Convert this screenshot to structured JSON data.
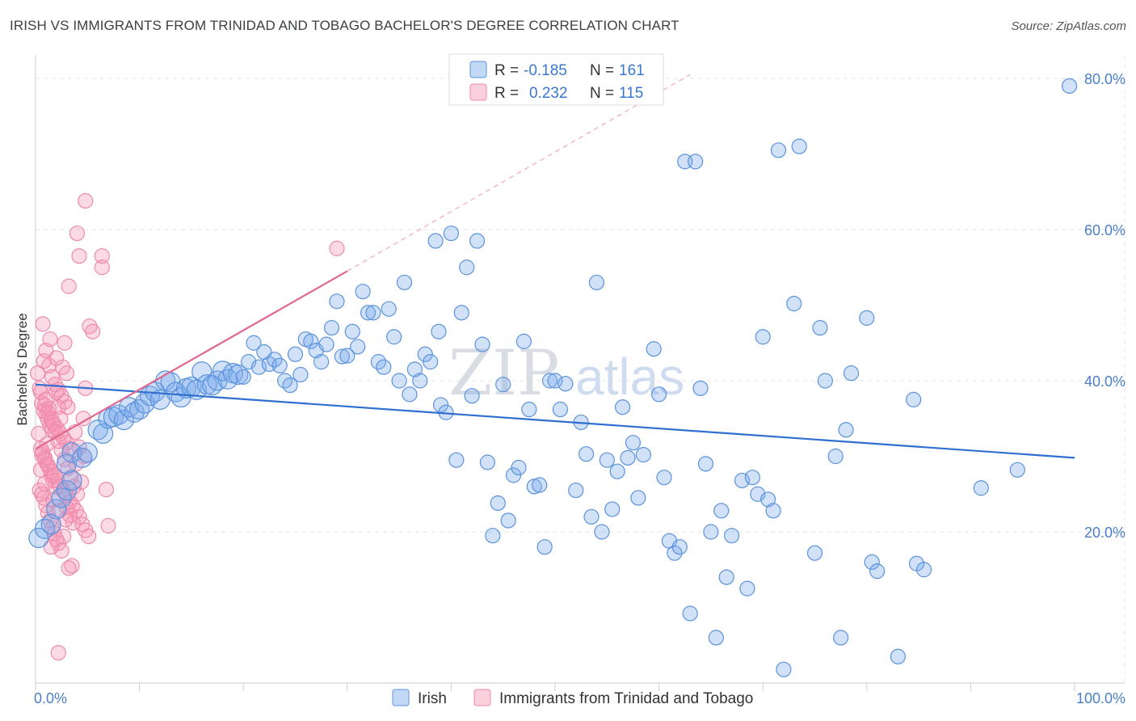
{
  "title": "IRISH VS IMMIGRANTS FROM TRINIDAD AND TOBAGO BACHELOR'S DEGREE CORRELATION CHART",
  "source": "Source: ZipAtlas.com",
  "watermark": {
    "zip": "ZIP",
    "atlas": "atlas"
  },
  "legend_top": [
    {
      "r_label": "R =",
      "r_value": "-0.185",
      "n_label": "N =",
      "n_value": "161"
    },
    {
      "r_label": "R =",
      "r_value": "0.232",
      "n_label": "N =",
      "n_value": "115"
    }
  ],
  "legend_bottom": [
    {
      "label": "Irish"
    },
    {
      "label": "Immigrants from Trinidad and Tobago"
    }
  ],
  "colors": {
    "irish_fill": "rgba(120,170,235,0.35)",
    "irish_stroke": "#5b93dd",
    "irish_line": "#2f6fcf",
    "tt_fill": "rgba(245,150,180,0.35)",
    "tt_stroke": "#ee8aab",
    "tt_line": "#e0688f",
    "grid": "#dfe3e8",
    "tick_text": "#4a7fc7"
  },
  "chart_data": {
    "type": "scatter",
    "title": "IRISH VS IMMIGRANTS FROM TRINIDAD AND TOBAGO BACHELOR'S DEGREE CORRELATION CHART",
    "xlabel": "",
    "ylabel": "Bachelor's Degree",
    "xlim": [
      0,
      100
    ],
    "ylim": [
      0,
      81
    ],
    "x_tick_labels": [
      "0.0%",
      "100.0%"
    ],
    "y_ticks": [
      20,
      40,
      60,
      80
    ],
    "y_tick_labels": [
      "20.0%",
      "40.0%",
      "60.0%",
      "80.0%"
    ],
    "grid": true,
    "legend_position": "top-center",
    "series": [
      {
        "name": "Irish",
        "r": -0.185,
        "n": 161,
        "trend": {
          "x": [
            0,
            100
          ],
          "y": [
            39.5,
            29.8
          ]
        },
        "points": [
          [
            0.3,
            19.2
          ],
          [
            0.9,
            20.4
          ],
          [
            1.5,
            21.0
          ],
          [
            2.0,
            23.0
          ],
          [
            2.5,
            24.5
          ],
          [
            3.0,
            25.5
          ],
          [
            3.5,
            26.8
          ],
          [
            3.0,
            29.0
          ],
          [
            3.5,
            30.5
          ],
          [
            4.5,
            29.8
          ],
          [
            5.0,
            30.5
          ],
          [
            6.0,
            33.5
          ],
          [
            6.5,
            33.0
          ],
          [
            7.0,
            35.0
          ],
          [
            7.5,
            35.2
          ],
          [
            8.0,
            35.5
          ],
          [
            8.5,
            34.8
          ],
          [
            9.0,
            36.5
          ],
          [
            9.5,
            35.8
          ],
          [
            10.0,
            36.2
          ],
          [
            10.5,
            37.0
          ],
          [
            11.0,
            38.0
          ],
          [
            11.5,
            38.5
          ],
          [
            12.0,
            37.5
          ],
          [
            12.5,
            40.0
          ],
          [
            13.0,
            39.8
          ],
          [
            13.5,
            38.5
          ],
          [
            14.0,
            37.8
          ],
          [
            14.5,
            39.0
          ],
          [
            15.0,
            39.2
          ],
          [
            15.5,
            38.8
          ],
          [
            16.0,
            41.2
          ],
          [
            16.5,
            39.5
          ],
          [
            17.0,
            39.4
          ],
          [
            17.5,
            40.0
          ],
          [
            18.0,
            41.3
          ],
          [
            18.5,
            40.2
          ],
          [
            19.0,
            41.0
          ],
          [
            19.5,
            40.8
          ],
          [
            20.0,
            40.5
          ],
          [
            20.5,
            42.5
          ],
          [
            21.0,
            45.0
          ],
          [
            21.5,
            41.8
          ],
          [
            22.0,
            43.8
          ],
          [
            22.5,
            42.2
          ],
          [
            23.0,
            42.8
          ],
          [
            23.5,
            42.0
          ],
          [
            24.0,
            40.0
          ],
          [
            24.5,
            39.4
          ],
          [
            25.0,
            43.5
          ],
          [
            25.5,
            40.8
          ],
          [
            26.0,
            45.5
          ],
          [
            26.5,
            45.2
          ],
          [
            27.0,
            44.0
          ],
          [
            27.5,
            42.5
          ],
          [
            28.0,
            44.8
          ],
          [
            28.5,
            47.0
          ],
          [
            29.0,
            50.5
          ],
          [
            29.5,
            43.2
          ],
          [
            30.0,
            43.3
          ],
          [
            30.5,
            46.5
          ],
          [
            31.0,
            44.5
          ],
          [
            31.5,
            51.8
          ],
          [
            32.0,
            49.0
          ],
          [
            32.5,
            49.0
          ],
          [
            33.0,
            42.5
          ],
          [
            33.5,
            41.8
          ],
          [
            34.0,
            49.5
          ],
          [
            34.5,
            45.8
          ],
          [
            35.0,
            40.0
          ],
          [
            35.5,
            53.0
          ],
          [
            36.0,
            38.2
          ],
          [
            36.5,
            41.5
          ],
          [
            37.0,
            40.0
          ],
          [
            37.5,
            43.5
          ],
          [
            38.0,
            42.5
          ],
          [
            38.5,
            58.5
          ],
          [
            38.8,
            46.5
          ],
          [
            39.0,
            36.8
          ],
          [
            39.5,
            35.8
          ],
          [
            40.0,
            59.5
          ],
          [
            40.5,
            29.5
          ],
          [
            41.0,
            49.0
          ],
          [
            41.5,
            55.0
          ],
          [
            42.0,
            38.0
          ],
          [
            42.5,
            58.5
          ],
          [
            43.0,
            44.8
          ],
          [
            43.5,
            29.2
          ],
          [
            44.0,
            19.5
          ],
          [
            44.5,
            23.8
          ],
          [
            45.0,
            39.5
          ],
          [
            45.5,
            21.5
          ],
          [
            46.0,
            27.5
          ],
          [
            46.5,
            28.5
          ],
          [
            47.0,
            45.2
          ],
          [
            47.5,
            36.2
          ],
          [
            48.0,
            26.0
          ],
          [
            48.5,
            26.2
          ],
          [
            49.0,
            18.0
          ],
          [
            49.5,
            40.0
          ],
          [
            50.0,
            40.0
          ],
          [
            50.5,
            36.2
          ],
          [
            51.0,
            39.6
          ],
          [
            52.0,
            25.5
          ],
          [
            52.5,
            34.5
          ],
          [
            53.0,
            30.3
          ],
          [
            53.5,
            22.0
          ],
          [
            54.0,
            53.0
          ],
          [
            54.5,
            20.0
          ],
          [
            55.0,
            29.5
          ],
          [
            55.5,
            23.0
          ],
          [
            56.0,
            28.0
          ],
          [
            56.5,
            36.5
          ],
          [
            57.0,
            29.8
          ],
          [
            57.5,
            31.8
          ],
          [
            58.0,
            24.5
          ],
          [
            58.5,
            30.2
          ],
          [
            59.5,
            44.2
          ],
          [
            60.0,
            38.2
          ],
          [
            60.5,
            27.2
          ],
          [
            61.0,
            18.8
          ],
          [
            61.5,
            17.2
          ],
          [
            62.0,
            18.0
          ],
          [
            62.5,
            69.0
          ],
          [
            63.0,
            9.2
          ],
          [
            63.5,
            69.0
          ],
          [
            64.0,
            39.0
          ],
          [
            64.5,
            29.0
          ],
          [
            65.0,
            20.0
          ],
          [
            65.5,
            6.0
          ],
          [
            66.0,
            22.8
          ],
          [
            66.5,
            14.0
          ],
          [
            67.0,
            19.5
          ],
          [
            68.0,
            26.8
          ],
          [
            68.5,
            12.5
          ],
          [
            69.0,
            27.2
          ],
          [
            69.5,
            25.0
          ],
          [
            70.0,
            45.8
          ],
          [
            70.5,
            24.3
          ],
          [
            71.0,
            22.8
          ],
          [
            71.5,
            70.5
          ],
          [
            72.0,
            1.8
          ],
          [
            73.0,
            50.2
          ],
          [
            73.5,
            71.0
          ],
          [
            75.0,
            17.2
          ],
          [
            75.5,
            47.0
          ],
          [
            76.0,
            40.0
          ],
          [
            77.0,
            30.0
          ],
          [
            77.5,
            6.0
          ],
          [
            78.0,
            33.5
          ],
          [
            78.5,
            41.0
          ],
          [
            80.0,
            48.3
          ],
          [
            80.5,
            16.0
          ],
          [
            81.0,
            14.8
          ],
          [
            83.0,
            3.5
          ],
          [
            84.5,
            37.5
          ],
          [
            84.8,
            15.8
          ],
          [
            85.5,
            15.0
          ],
          [
            91.0,
            25.8
          ],
          [
            94.5,
            28.2
          ],
          [
            99.5,
            79.0
          ]
        ]
      },
      {
        "name": "Immigrants from Trinidad and Tobago",
        "r": 0.232,
        "n": 115,
        "trend": {
          "x": [
            0,
            30
          ],
          "y": [
            31.0,
            54.5
          ]
        },
        "trend_dashed": {
          "x": [
            30,
            63
          ],
          "y": [
            54.5,
            80.5
          ]
        },
        "points": [
          [
            0.2,
            41.0
          ],
          [
            0.4,
            39.0
          ],
          [
            0.5,
            38.5
          ],
          [
            0.6,
            37.0
          ],
          [
            0.8,
            36.0
          ],
          [
            1.0,
            35.5
          ],
          [
            1.2,
            34.8
          ],
          [
            1.4,
            34.0
          ],
          [
            1.6,
            33.5
          ],
          [
            0.3,
            33.0
          ],
          [
            0.5,
            31.0
          ],
          [
            0.7,
            30.5
          ],
          [
            0.9,
            29.8
          ],
          [
            1.1,
            29.0
          ],
          [
            1.3,
            28.5
          ],
          [
            1.5,
            27.5
          ],
          [
            1.7,
            26.8
          ],
          [
            1.9,
            26.0
          ],
          [
            0.4,
            25.5
          ],
          [
            0.6,
            25.0
          ],
          [
            0.8,
            24.5
          ],
          [
            1.0,
            23.5
          ],
          [
            1.2,
            22.5
          ],
          [
            1.4,
            21.5
          ],
          [
            1.6,
            20.5
          ],
          [
            1.8,
            19.8
          ],
          [
            2.0,
            19.0
          ],
          [
            2.2,
            18.5
          ],
          [
            0.7,
            47.5
          ],
          [
            1.0,
            44.0
          ],
          [
            1.3,
            42.0
          ],
          [
            1.6,
            40.5
          ],
          [
            1.9,
            39.5
          ],
          [
            2.2,
            38.8
          ],
          [
            2.5,
            38.0
          ],
          [
            2.8,
            37.2
          ],
          [
            3.1,
            36.5
          ],
          [
            0.9,
            36.8
          ],
          [
            1.2,
            35.8
          ],
          [
            1.5,
            35.0
          ],
          [
            1.8,
            34.2
          ],
          [
            2.1,
            33.6
          ],
          [
            2.4,
            33.0
          ],
          [
            2.7,
            32.4
          ],
          [
            3.0,
            31.8
          ],
          [
            3.3,
            31.0
          ],
          [
            0.6,
            30.2
          ],
          [
            0.9,
            29.5
          ],
          [
            1.2,
            28.8
          ],
          [
            1.5,
            28.0
          ],
          [
            1.8,
            27.4
          ],
          [
            2.1,
            26.8
          ],
          [
            2.4,
            26.0
          ],
          [
            2.7,
            25.4
          ],
          [
            3.0,
            24.8
          ],
          [
            3.3,
            24.0
          ],
          [
            3.6,
            23.4
          ],
          [
            3.9,
            22.8
          ],
          [
            4.2,
            22.0
          ],
          [
            4.5,
            21.0
          ],
          [
            4.8,
            20.2
          ],
          [
            5.1,
            19.4
          ],
          [
            2.5,
            17.5
          ],
          [
            3.5,
            15.5
          ],
          [
            3.2,
            15.2
          ],
          [
            2.2,
            4.0
          ],
          [
            4.8,
            63.8
          ],
          [
            4.0,
            59.5
          ],
          [
            4.2,
            56.5
          ],
          [
            6.4,
            56.5
          ],
          [
            6.4,
            55.0
          ],
          [
            3.2,
            52.5
          ],
          [
            5.2,
            47.2
          ],
          [
            5.5,
            46.5
          ],
          [
            2.8,
            45.0
          ],
          [
            3.0,
            41.0
          ],
          [
            4.8,
            39.0
          ],
          [
            2.0,
            38.5
          ],
          [
            2.2,
            36.5
          ],
          [
            2.4,
            35.0
          ],
          [
            1.0,
            37.5
          ],
          [
            1.3,
            36.3
          ],
          [
            1.6,
            34.5
          ],
          [
            1.9,
            33.2
          ],
          [
            2.2,
            32.0
          ],
          [
            2.5,
            30.8
          ],
          [
            2.8,
            29.6
          ],
          [
            3.1,
            28.4
          ],
          [
            3.4,
            27.2
          ],
          [
            3.7,
            26.0
          ],
          [
            4.0,
            25.0
          ],
          [
            3.0,
            23.2
          ],
          [
            3.3,
            22.2
          ],
          [
            3.6,
            21.2
          ],
          [
            6.8,
            25.6
          ],
          [
            7.0,
            20.8
          ],
          [
            2.6,
            41.8
          ],
          [
            1.4,
            45.5
          ],
          [
            2.0,
            43.0
          ],
          [
            0.8,
            42.6
          ],
          [
            4.2,
            31.2
          ],
          [
            4.6,
            35.0
          ],
          [
            3.8,
            33.2
          ],
          [
            1.1,
            31.6
          ],
          [
            0.5,
            28.2
          ],
          [
            0.9,
            26.4
          ],
          [
            1.7,
            24.2
          ],
          [
            2.3,
            22.8
          ],
          [
            2.9,
            21.6
          ],
          [
            1.5,
            18.0
          ],
          [
            2.7,
            19.4
          ],
          [
            4.4,
            26.6
          ],
          [
            3.9,
            29.0
          ],
          [
            4.7,
            30.0
          ],
          [
            29.0,
            57.5
          ]
        ]
      }
    ]
  }
}
